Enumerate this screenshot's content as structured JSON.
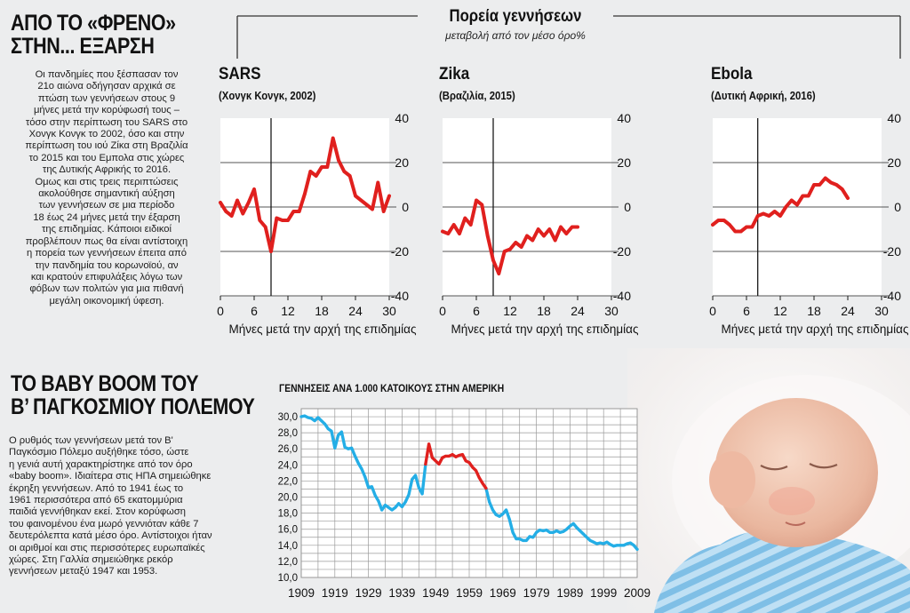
{
  "top_section": {
    "title_line1": "ΑΠΟ ΤΟ «ΦΡΕΝΟ»",
    "title_line2": "ΣΤΗΝ... ΕΞΑΡΣΗ",
    "paragraph_lines": [
      "Οι πανδημίες που ξέσπασαν τον",
      "21ο αιώνα οδήγησαν αρχικά σε",
      "πτώση των γεννήσεων στους 9",
      "μήνες μετά την κορύφωσή τους –",
      "τόσο στην περίπτωση του SARS στο",
      "Χονγκ Κονγκ το 2002, όσο και στην",
      "περίπτωση του ιού Ζίκα στη Βραζιλία",
      "το 2015 και του Εμπολα στις χώρες",
      "της Δυτικής Αφρικής το 2016.",
      "Ομως και στις τρεις περιπτώσεις",
      "ακολούθησε σημαντική αύξηση",
      "των γεννήσεων σε μια περίοδο",
      "18 έως 24 μήνες μετά την έξαρση",
      "της επιδημίας. Κάποιοι ειδικοί",
      "προβλέπουν πως θα είναι αντίστοιχη",
      "η πορεία των γεννήσεων έπειτα από",
      "την πανδημία του κορωνοϊού, αν",
      "και κρατούν επιφυλάξεις λόγω των",
      "φόβων των πολιτών για μια πιθανή",
      "μεγάλη οικονομική ύφεση."
    ]
  },
  "header": {
    "title": "Πορεία γεννήσεων",
    "subtitle": "μεταβολή από τον μέσο όρο%"
  },
  "bottom_section": {
    "title_line1": "ΤΟ BABY BOOM ΤΟΥ",
    "title_line2": "Β’ ΠΑΓΚΟΣΜΙΟΥ ΠΟΛΕΜΟΥ",
    "paragraph_lines": [
      "Ο ρυθμός των γεννήσεων μετά τον Β'",
      "Παγκόσμιο Πόλεμο αυξήθηκε τόσο, ώστε",
      "η γενιά αυτή χαρακτηρίστηκε από τον όρο",
      "«baby boom». Ιδιαίτερα στις ΗΠΑ σημειώθηκε",
      "έκρηξη γεννήσεων. Από το 1941 έως το",
      "1961 περισσότερα από 65 εκατομμύρια",
      "παιδιά γεννήθηκαν εκεί. Στον κορύφωση",
      "του φαινομένου ένα μωρό γεννιόταν κάθε 7",
      "δευτερόλεπτα κατά μέσο όρο. Αντίστοιχοι ήταν",
      "οι αριθμοί και στις περισσότερες ευρωπαϊκές",
      "χώρες. Στη Γαλλία σημειώθηκε ρεκόρ",
      "γεννήσεων μεταξύ 1947 και 1953."
    ]
  },
  "colors": {
    "red_line": "#e0201e",
    "blue_line": "#24aee6",
    "axis": "#1a1a1a",
    "grid_top": "#555555",
    "grid_bottom": "#9a9a9a",
    "background": "#ecedee",
    "chart_bg": "#ffffff"
  },
  "chart_data": [
    {
      "type": "line",
      "title": "SARS",
      "subtitle": "(Χονγκ Κονγκ, 2002)",
      "xlabel": "Μήνες μετά την αρχή της επιδημίας",
      "ylabel": "",
      "xlim": [
        0,
        30
      ],
      "ylim": [
        -40,
        40
      ],
      "x_ticks": [
        0,
        6,
        12,
        18,
        24,
        30
      ],
      "y_ticks": [
        40,
        20,
        0,
        -20,
        -40
      ],
      "event_month": 9,
      "x": [
        0,
        1,
        2,
        3,
        4,
        5,
        6,
        7,
        8,
        9,
        10,
        11,
        12,
        13,
        14,
        15,
        16,
        17,
        18,
        19,
        20,
        21,
        22,
        23,
        24,
        25,
        26,
        27,
        28,
        29,
        30
      ],
      "values": [
        2,
        -2,
        -4,
        3,
        -3,
        2,
        8,
        -6,
        -9,
        -20,
        -5,
        -6,
        -6,
        -2,
        -2,
        6,
        16,
        14,
        18,
        18,
        31,
        21,
        16,
        14,
        5,
        3,
        1,
        -1,
        11,
        -2,
        5
      ]
    },
    {
      "type": "line",
      "title": "Zika",
      "subtitle": "(Βραζιλία, 2015)",
      "xlabel": "Μήνες μετά την αρχή της επιδημίας",
      "ylabel": "",
      "xlim": [
        0,
        30
      ],
      "ylim": [
        -40,
        40
      ],
      "x_ticks": [
        0,
        6,
        12,
        18,
        24,
        30
      ],
      "y_ticks": [
        40,
        20,
        0,
        -20,
        -40
      ],
      "event_month": 9,
      "x": [
        0,
        1,
        2,
        3,
        4,
        5,
        6,
        7,
        8,
        9,
        10,
        11,
        12,
        13,
        14,
        15,
        16,
        17,
        18,
        19,
        20,
        21,
        22,
        23,
        24
      ],
      "values": [
        -11,
        -12,
        -8,
        -12,
        -5,
        -8,
        3,
        1,
        -13,
        -24,
        -30,
        -20,
        -19,
        -16,
        -18,
        -13,
        -15,
        -10,
        -13,
        -10,
        -15,
        -9,
        -12,
        -9,
        -9
      ]
    },
    {
      "type": "line",
      "title": "Ebola",
      "subtitle": "(Δυτική Αφρική, 2016)",
      "xlabel": "Μήνες μετά την αρχή της επιδημίας",
      "ylabel": "",
      "xlim": [
        0,
        30
      ],
      "ylim": [
        -40,
        40
      ],
      "x_ticks": [
        0,
        6,
        12,
        18,
        24,
        30
      ],
      "y_ticks": [
        40,
        20,
        0,
        -20,
        -40
      ],
      "event_month": 8,
      "x": [
        0,
        1,
        2,
        3,
        4,
        5,
        6,
        7,
        8,
        9,
        10,
        11,
        12,
        13,
        14,
        15,
        16,
        17,
        18,
        19,
        20,
        21,
        22,
        23,
        24
      ],
      "values": [
        -8,
        -6,
        -6,
        -8,
        -11,
        -11,
        -9,
        -9,
        -4,
        -3,
        -4,
        -2,
        -4,
        0,
        3,
        1,
        5,
        5,
        10,
        10,
        13,
        11,
        10,
        8,
        4
      ]
    },
    {
      "type": "line",
      "title": "ΓΕΝΝΗΣΕΙΣ ΑΝΑ 1.000 ΚΑΤΟΙΚΟΥΣ ΣΤΗΝ ΑΜΕΡΙΚΗ",
      "xlabel": "",
      "ylabel": "",
      "xlim": [
        1909,
        2009
      ],
      "ylim": [
        10,
        31
      ],
      "x_ticks": [
        1909,
        1919,
        1929,
        1939,
        1949,
        1959,
        1969,
        1979,
        1989,
        1999,
        2009
      ],
      "y_ticks": [
        10.0,
        12.0,
        14.0,
        16.0,
        18.0,
        20.0,
        22.0,
        24.0,
        26.0,
        28.0,
        30.0
      ],
      "y_tick_labels": [
        "10,0",
        "12,0",
        "14,0",
        "16,0",
        "18,0",
        "20,0",
        "22,0",
        "24,0",
        "26,0",
        "28,0",
        "30,0"
      ],
      "highlight_range": [
        1946,
        1964
      ],
      "series": [
        {
          "name": "Γεννήσεις ανά 1.000 κατοίκους",
          "x": [
            1909,
            1910,
            1911,
            1912,
            1913,
            1914,
            1915,
            1916,
            1917,
            1918,
            1919,
            1920,
            1921,
            1922,
            1923,
            1924,
            1925,
            1926,
            1927,
            1928,
            1929,
            1930,
            1931,
            1932,
            1933,
            1934,
            1935,
            1936,
            1937,
            1938,
            1939,
            1940,
            1941,
            1942,
            1943,
            1944,
            1945,
            1946,
            1947,
            1948,
            1949,
            1950,
            1951,
            1952,
            1953,
            1954,
            1955,
            1956,
            1957,
            1958,
            1959,
            1960,
            1961,
            1962,
            1963,
            1964,
            1965,
            1966,
            1967,
            1968,
            1969,
            1970,
            1971,
            1972,
            1973,
            1974,
            1975,
            1976,
            1977,
            1978,
            1979,
            1980,
            1981,
            1982,
            1983,
            1984,
            1985,
            1986,
            1987,
            1988,
            1989,
            1990,
            1991,
            1992,
            1993,
            1994,
            1995,
            1996,
            1997,
            1998,
            1999,
            2000,
            2001,
            2002,
            2003,
            2004,
            2005,
            2006,
            2007,
            2008,
            2009
          ],
          "values": [
            30.0,
            30.1,
            29.9,
            29.8,
            29.5,
            29.9,
            29.5,
            29.1,
            28.5,
            28.2,
            26.1,
            27.7,
            28.1,
            26.2,
            26.0,
            26.1,
            25.1,
            24.2,
            23.5,
            22.5,
            21.2,
            21.3,
            20.2,
            19.5,
            18.4,
            19.0,
            18.7,
            18.4,
            18.7,
            19.2,
            18.8,
            19.4,
            20.3,
            22.2,
            22.7,
            21.2,
            20.4,
            24.1,
            26.6,
            24.9,
            24.5,
            24.1,
            24.9,
            25.1,
            25.1,
            25.3,
            25.0,
            25.2,
            25.3,
            24.5,
            24.3,
            23.7,
            23.3,
            22.4,
            21.7,
            21.1,
            19.4,
            18.4,
            17.8,
            17.6,
            17.9,
            18.4,
            17.2,
            15.6,
            14.8,
            14.8,
            14.6,
            14.6,
            15.1,
            15.0,
            15.6,
            15.9,
            15.8,
            15.9,
            15.6,
            15.6,
            15.8,
            15.6,
            15.7,
            16.0,
            16.4,
            16.7,
            16.2,
            15.8,
            15.4,
            15.0,
            14.6,
            14.4,
            14.2,
            14.3,
            14.2,
            14.4,
            14.1,
            13.9,
            14.0,
            14.0,
            14.0,
            14.2,
            14.3,
            14.0,
            13.5
          ]
        }
      ]
    }
  ]
}
